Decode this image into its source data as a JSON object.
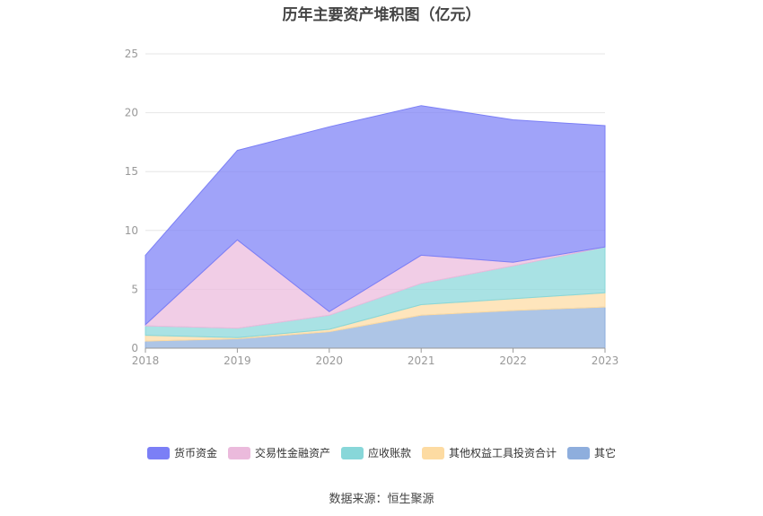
{
  "chart_data": {
    "type": "area",
    "stacked": true,
    "title": "历年主要资产堆积图（亿元）",
    "x": [
      "2018",
      "2019",
      "2020",
      "2021",
      "2022",
      "2023"
    ],
    "yticks": [
      "0",
      "5",
      "10",
      "15",
      "20",
      "25"
    ],
    "ylim": [
      0,
      25
    ],
    "grid": true,
    "legend_position": "bottom",
    "series": [
      {
        "name": "其它",
        "color": "#8eaedd",
        "values": [
          0.6,
          0.8,
          1.4,
          2.8,
          3.2,
          3.5
        ]
      },
      {
        "name": "其他权益工具投资合计",
        "color": "#fddba2",
        "values": [
          0.5,
          0.1,
          0.2,
          0.9,
          1.0,
          1.2
        ]
      },
      {
        "name": "应收账款",
        "color": "#88d7d9",
        "values": [
          0.8,
          0.8,
          1.2,
          1.8,
          2.8,
          3.9
        ]
      },
      {
        "name": "交易性金融资产",
        "color": "#ebbadc",
        "values": [
          0.1,
          7.5,
          0.3,
          2.4,
          0.3,
          0.0
        ]
      },
      {
        "name": "货币资金",
        "color": "#7b7ff6",
        "values": [
          5.9,
          7.6,
          15.7,
          12.7,
          12.1,
          10.3
        ]
      }
    ]
  },
  "footer": {
    "source": "数据来源：恒生聚源"
  }
}
